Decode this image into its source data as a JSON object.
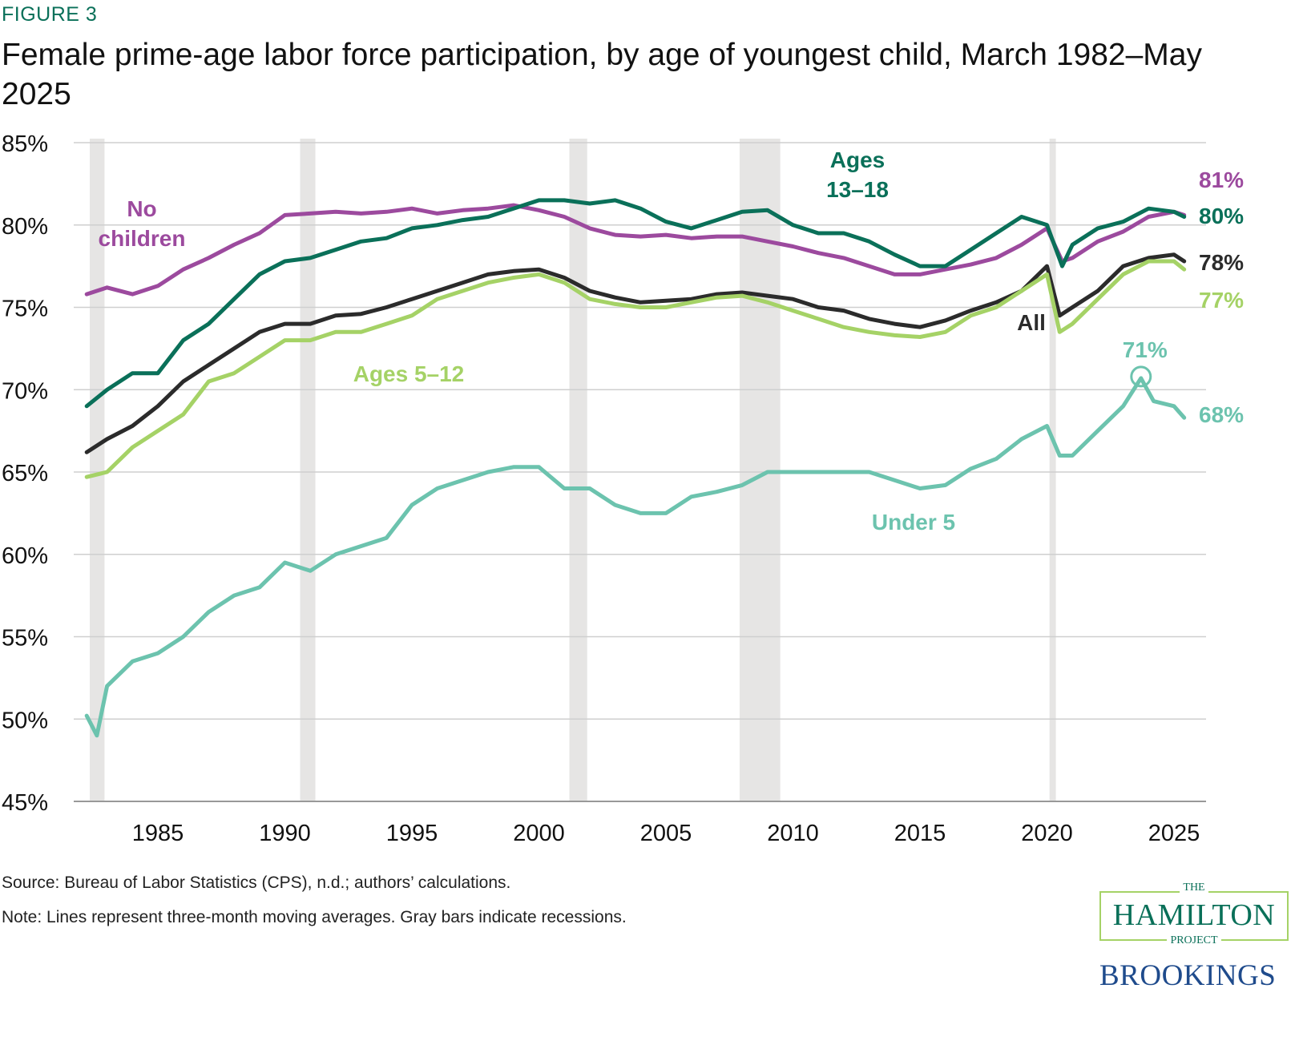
{
  "figure_label": "FIGURE 3",
  "source": "Source: Bureau of Labor Statistics (CPS), n.d.; authors’ calculations.",
  "note": "Note: Lines represent three-month moving averages. Gray bars indicate recessions.",
  "logo": {
    "the": "THE",
    "hamilton": "HAMILTON",
    "project": "PROJECT",
    "brookings": "BROOKINGS"
  },
  "chart_data": {
    "type": "line",
    "title": "Female prime-age labor force participation, by age of youngest child, March 1982–May 2025",
    "xlabel": "",
    "ylabel": "",
    "xlim": [
      1982.2,
      2025.4
    ],
    "ylim": [
      45,
      85
    ],
    "x_ticks": [
      1985,
      1990,
      1995,
      2000,
      2005,
      2010,
      2015,
      2020,
      2025
    ],
    "y_ticks": [
      45,
      50,
      55,
      60,
      65,
      70,
      75,
      80,
      85
    ],
    "y_tick_labels": [
      "45%",
      "50%",
      "55%",
      "60%",
      "65%",
      "70%",
      "75%",
      "80%",
      "85%"
    ],
    "grid": "horizontal",
    "recessions": [
      [
        1982.2,
        1982.9
      ],
      [
        1990.6,
        1991.2
      ],
      [
        2001.2,
        2001.9
      ],
      [
        2007.9,
        2009.5
      ],
      [
        2020.1,
        2020.35
      ]
    ],
    "series": [
      {
        "name": "No children",
        "label_lines": [
          "No",
          "children"
        ],
        "end_label": "81%",
        "color": "#9c4a9e",
        "x": [
          1982.2,
          1983,
          1984,
          1985,
          1986,
          1987,
          1988,
          1989,
          1990,
          1991,
          1992,
          1993,
          1994,
          1995,
          1996,
          1997,
          1998,
          1999,
          2000,
          2001,
          2002,
          2003,
          2004,
          2005,
          2006,
          2007,
          2008,
          2009,
          2010,
          2011,
          2012,
          2013,
          2014,
          2015,
          2016,
          2017,
          2018,
          2019,
          2020,
          2020.6,
          2021,
          2022,
          2023,
          2024,
          2025,
          2025.4
        ],
        "y": [
          75.8,
          76.2,
          75.8,
          76.3,
          77.3,
          78.0,
          78.8,
          79.5,
          80.6,
          80.7,
          80.8,
          80.7,
          80.8,
          81.0,
          80.7,
          80.9,
          81.0,
          81.2,
          80.9,
          80.5,
          79.8,
          79.4,
          79.3,
          79.4,
          79.2,
          79.3,
          79.3,
          79.0,
          78.7,
          78.3,
          78.0,
          77.5,
          77.0,
          77.0,
          77.3,
          77.6,
          78.0,
          78.8,
          79.8,
          77.8,
          78.0,
          79.0,
          79.6,
          80.5,
          80.8,
          80.6
        ]
      },
      {
        "name": "Ages 13–18",
        "label_lines": [
          "Ages",
          "13–18"
        ],
        "end_label": "80%",
        "color": "#0a7059",
        "x": [
          1982.2,
          1983,
          1984,
          1985,
          1986,
          1987,
          1988,
          1989,
          1990,
          1991,
          1992,
          1993,
          1994,
          1995,
          1996,
          1997,
          1998,
          1999,
          2000,
          2001,
          2002,
          2003,
          2004,
          2005,
          2006,
          2007,
          2008,
          2009,
          2010,
          2011,
          2012,
          2013,
          2014,
          2015,
          2016,
          2017,
          2018,
          2019,
          2020,
          2020.6,
          2021,
          2022,
          2023,
          2024,
          2025,
          2025.4
        ],
        "y": [
          69.0,
          70.0,
          71.0,
          71.0,
          73.0,
          74.0,
          75.5,
          77.0,
          77.8,
          78.0,
          78.5,
          79.0,
          79.2,
          79.8,
          80.0,
          80.3,
          80.5,
          81.0,
          81.5,
          81.5,
          81.3,
          81.5,
          81.0,
          80.2,
          79.8,
          80.3,
          80.8,
          80.9,
          80.0,
          79.5,
          79.5,
          79.0,
          78.2,
          77.5,
          77.5,
          78.5,
          79.5,
          80.5,
          80.0,
          77.5,
          78.8,
          79.8,
          80.2,
          81.0,
          80.8,
          80.5
        ]
      },
      {
        "name": "All",
        "label_lines": [
          "All"
        ],
        "end_label": "78%",
        "color": "#2b2b2b",
        "x": [
          1982.2,
          1983,
          1984,
          1985,
          1986,
          1987,
          1988,
          1989,
          1990,
          1991,
          1992,
          1993,
          1994,
          1995,
          1996,
          1997,
          1998,
          1999,
          2000,
          2001,
          2002,
          2003,
          2004,
          2005,
          2006,
          2007,
          2008,
          2009,
          2010,
          2011,
          2012,
          2013,
          2014,
          2015,
          2016,
          2017,
          2018,
          2019,
          2020,
          2020.5,
          2021,
          2022,
          2023,
          2024,
          2025,
          2025.4
        ],
        "y": [
          66.2,
          67.0,
          67.8,
          69.0,
          70.5,
          71.5,
          72.5,
          73.5,
          74.0,
          74.0,
          74.5,
          74.6,
          75.0,
          75.5,
          76.0,
          76.5,
          77.0,
          77.2,
          77.3,
          76.8,
          76.0,
          75.6,
          75.3,
          75.4,
          75.5,
          75.8,
          75.9,
          75.7,
          75.5,
          75.0,
          74.8,
          74.3,
          74.0,
          73.8,
          74.2,
          74.8,
          75.3,
          76.0,
          77.5,
          74.5,
          75.0,
          76.0,
          77.5,
          78.0,
          78.2,
          77.8
        ]
      },
      {
        "name": "Ages 5–12",
        "label_lines": [
          "Ages 5–12"
        ],
        "end_label": "77%",
        "color": "#a5d266",
        "x": [
          1982.2,
          1983,
          1984,
          1985,
          1986,
          1987,
          1988,
          1989,
          1990,
          1991,
          1992,
          1993,
          1994,
          1995,
          1996,
          1997,
          1998,
          1999,
          2000,
          2001,
          2002,
          2003,
          2004,
          2005,
          2006,
          2007,
          2008,
          2009,
          2010,
          2011,
          2012,
          2013,
          2014,
          2015,
          2016,
          2017,
          2018,
          2019,
          2020,
          2020.5,
          2021,
          2022,
          2023,
          2024,
          2025,
          2025.4
        ],
        "y": [
          64.7,
          65.0,
          66.5,
          67.5,
          68.5,
          70.5,
          71.0,
          72.0,
          73.0,
          73.0,
          73.5,
          73.5,
          74.0,
          74.5,
          75.5,
          76.0,
          76.5,
          76.8,
          77.0,
          76.5,
          75.5,
          75.2,
          75.0,
          75.0,
          75.3,
          75.6,
          75.7,
          75.3,
          74.8,
          74.3,
          73.8,
          73.5,
          73.3,
          73.2,
          73.5,
          74.5,
          75.0,
          76.0,
          77.0,
          73.5,
          74.0,
          75.5,
          77.0,
          77.8,
          77.8,
          77.3
        ]
      },
      {
        "name": "Under 5",
        "label_lines": [
          "Under 5"
        ],
        "end_label": "68%",
        "peak_label": "71%",
        "peak": [
          2023.7,
          70.7
        ],
        "color": "#6cc3ae",
        "x": [
          1982.2,
          1982.6,
          1983,
          1984,
          1985,
          1986,
          1987,
          1988,
          1989,
          1990,
          1991,
          1992,
          1993,
          1994,
          1995,
          1996,
          1997,
          1998,
          1999,
          2000,
          2001,
          2002,
          2003,
          2004,
          2005,
          2006,
          2007,
          2008,
          2009,
          2010,
          2011,
          2012,
          2013,
          2014,
          2015,
          2016,
          2017,
          2018,
          2019,
          2020,
          2020.5,
          2021,
          2022,
          2023,
          2023.7,
          2024.2,
          2025,
          2025.4
        ],
        "y": [
          50.2,
          49.0,
          52.0,
          53.5,
          54.0,
          55.0,
          56.5,
          57.5,
          58.0,
          59.5,
          59.0,
          60.0,
          60.5,
          61.0,
          63.0,
          64.0,
          64.5,
          65.0,
          65.3,
          65.3,
          64.0,
          64.0,
          63.0,
          62.5,
          62.5,
          63.5,
          63.8,
          64.2,
          65.0,
          65.0,
          65.0,
          65.0,
          65.0,
          64.5,
          64.0,
          64.2,
          65.2,
          65.8,
          67.0,
          67.8,
          66.0,
          66.0,
          67.5,
          69.0,
          70.7,
          69.3,
          69.0,
          68.3
        ]
      }
    ]
  }
}
